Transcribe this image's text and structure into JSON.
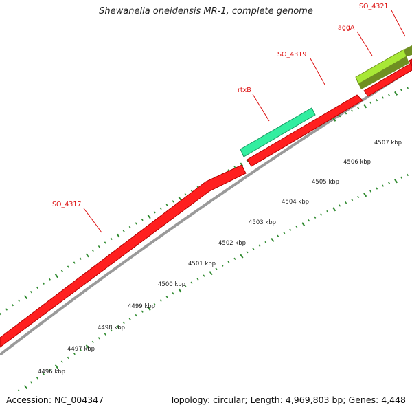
{
  "title": "Shewanella oneidensis MR-1, complete genome",
  "accession": "Accession: NC_004347",
  "summary": "Topology: circular; Length: 4,969,803 bp; Genes: 4,448",
  "colors": {
    "gene": "#ff1f1f",
    "gene_rtxB": "#33eea0",
    "gene_aggA": "#a8e836",
    "gene_aggA_dark": "#6f8f22",
    "label": "#dd1111",
    "tick": "#2f8a2f",
    "backbone": "#9a9a9a"
  },
  "ruler": {
    "ticks": [
      {
        "label": "4496 kbp"
      },
      {
        "label": "4497 kbp"
      },
      {
        "label": "4498 kbp"
      },
      {
        "label": "4499 kbp"
      },
      {
        "label": "4500 kbp"
      },
      {
        "label": "4501 kbp"
      },
      {
        "label": "4502 kbp"
      },
      {
        "label": "4503 kbp"
      },
      {
        "label": "4504 kbp"
      },
      {
        "label": "4505 kbp"
      },
      {
        "label": "4506 kbp"
      },
      {
        "label": "4507 kbp"
      }
    ]
  },
  "genes": [
    {
      "name": "SO_4317"
    },
    {
      "name": "rtxB"
    },
    {
      "name": "SO_4319"
    },
    {
      "name": "aggA"
    },
    {
      "name": "SO_4321"
    }
  ]
}
